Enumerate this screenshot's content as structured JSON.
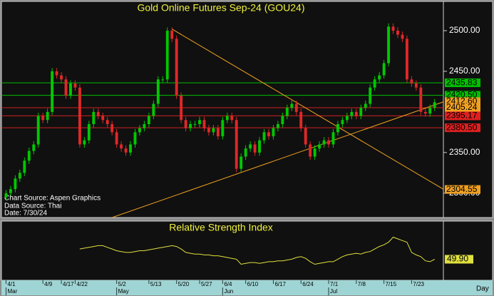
{
  "chart_data": {
    "type": "candlestick",
    "title": "Gold Online Futures Sep-24 (GOU24)",
    "annotations": [
      "Chart Source: Aspen Graphics",
      "Data Source: Thai",
      "Date: 7/30/24"
    ],
    "x_unit_label": "Day",
    "up_color": "#00c800",
    "down_color": "#e02828",
    "ylim": [
      2270,
      2536
    ],
    "yticks": [
      {
        "value": 2300,
        "label": "2300.00"
      },
      {
        "value": 2350,
        "label": "2350.00"
      },
      {
        "value": 2450,
        "label": "2450.00"
      },
      {
        "value": 2500,
        "label": "2500.00"
      }
    ],
    "xlim": [
      -1,
      94.9
    ],
    "xticks": [
      {
        "value": 0,
        "label": "4/1"
      },
      {
        "value": 8,
        "label": "4/9"
      },
      {
        "value": 12,
        "label": "4/17"
      },
      {
        "value": 15,
        "label": "4/22"
      },
      {
        "value": 24,
        "label": "5/2"
      },
      {
        "value": 31,
        "label": "5/13"
      },
      {
        "value": 37,
        "label": "5/20"
      },
      {
        "value": 42,
        "label": "5/27"
      },
      {
        "value": 47,
        "label": "6/4"
      },
      {
        "value": 52,
        "label": "6/10"
      },
      {
        "value": 58,
        "label": "6/17"
      },
      {
        "value": 64,
        "label": "6/24"
      },
      {
        "value": 70,
        "label": "7/1"
      },
      {
        "value": 76,
        "label": "7/8"
      },
      {
        "value": 82,
        "label": "7/15"
      },
      {
        "value": 88,
        "label": "7/23"
      }
    ],
    "month_ticks": [
      {
        "value": 0,
        "label": "Mar"
      },
      {
        "value": 24,
        "label": "May"
      },
      {
        "value": 47,
        "label": "Jun"
      },
      {
        "value": 70,
        "label": "Jul"
      }
    ],
    "open": [
      2295,
      2300,
      2305,
      2318,
      2325,
      2340,
      2352,
      2360,
      2395,
      2390,
      2400,
      2450,
      2445,
      2440,
      2420,
      2435,
      2430,
      2360,
      2365,
      2385,
      2400,
      2395,
      2390,
      2385,
      2375,
      2360,
      2355,
      2350,
      2360,
      2375,
      2380,
      2385,
      2395,
      2410,
      2440,
      2440,
      2500,
      2490,
      2420,
      2390,
      2380,
      2385,
      2385,
      2390,
      2380,
      2375,
      2380,
      2370,
      2390,
      2395,
      2390,
      2330,
      2345,
      2355,
      2360,
      2350,
      2365,
      2375,
      2370,
      2380,
      2385,
      2395,
      2405,
      2410,
      2400,
      2380,
      2360,
      2345,
      2355,
      2360,
      2365,
      2360,
      2375,
      2385,
      2390,
      2395,
      2400,
      2395,
      2405,
      2410,
      2430,
      2440,
      2445,
      2460,
      2505,
      2500,
      2495,
      2490,
      2440,
      2435,
      2430,
      2400,
      2398,
      2405
    ],
    "high": [
      2304,
      2309,
      2322,
      2329,
      2344,
      2356,
      2364,
      2399,
      2399,
      2404,
      2454,
      2454,
      2449,
      2444,
      2439,
      2439,
      2434,
      2369,
      2389,
      2404,
      2404,
      2399,
      2394,
      2389,
      2379,
      2364,
      2359,
      2364,
      2379,
      2384,
      2389,
      2399,
      2414,
      2444,
      2444,
      2504,
      2504,
      2494,
      2424,
      2394,
      2389,
      2389,
      2394,
      2394,
      2384,
      2384,
      2384,
      2394,
      2399,
      2399,
      2394,
      2349,
      2359,
      2364,
      2364,
      2369,
      2379,
      2379,
      2384,
      2389,
      2399,
      2409,
      2414,
      2414,
      2404,
      2384,
      2364,
      2359,
      2364,
      2369,
      2369,
      2379,
      2389,
      2394,
      2399,
      2404,
      2404,
      2409,
      2414,
      2434,
      2444,
      2449,
      2464,
      2509,
      2509,
      2504,
      2499,
      2494,
      2444,
      2439,
      2434,
      2404,
      2409,
      2416
    ],
    "low": [
      2291,
      2296,
      2301,
      2314,
      2321,
      2336,
      2348,
      2356,
      2386,
      2386,
      2396,
      2441,
      2436,
      2416,
      2416,
      2426,
      2356,
      2356,
      2361,
      2381,
      2391,
      2386,
      2381,
      2371,
      2356,
      2351,
      2346,
      2346,
      2356,
      2371,
      2376,
      2381,
      2391,
      2406,
      2436,
      2436,
      2486,
      2416,
      2386,
      2376,
      2376,
      2381,
      2381,
      2376,
      2371,
      2371,
      2366,
      2366,
      2386,
      2386,
      2326,
      2326,
      2341,
      2351,
      2346,
      2346,
      2361,
      2366,
      2366,
      2376,
      2381,
      2391,
      2401,
      2396,
      2376,
      2356,
      2341,
      2341,
      2351,
      2356,
      2356,
      2356,
      2371,
      2381,
      2386,
      2391,
      2391,
      2391,
      2401,
      2406,
      2426,
      2436,
      2441,
      2456,
      2496,
      2491,
      2486,
      2436,
      2431,
      2426,
      2396,
      2394,
      2394,
      2401
    ],
    "close": [
      2300,
      2305,
      2318,
      2325,
      2340,
      2352,
      2360,
      2395,
      2390,
      2400,
      2450,
      2445,
      2440,
      2420,
      2435,
      2430,
      2360,
      2365,
      2385,
      2400,
      2395,
      2390,
      2385,
      2375,
      2360,
      2355,
      2350,
      2360,
      2375,
      2380,
      2385,
      2395,
      2410,
      2440,
      2440,
      2500,
      2490,
      2420,
      2390,
      2380,
      2385,
      2385,
      2390,
      2380,
      2375,
      2380,
      2370,
      2390,
      2395,
      2390,
      2330,
      2345,
      2355,
      2360,
      2350,
      2365,
      2375,
      2370,
      2380,
      2385,
      2395,
      2405,
      2410,
      2400,
      2380,
      2360,
      2345,
      2355,
      2360,
      2365,
      2360,
      2375,
      2385,
      2390,
      2395,
      2400,
      2395,
      2405,
      2410,
      2430,
      2440,
      2445,
      2460,
      2505,
      2500,
      2495,
      2490,
      2440,
      2435,
      2430,
      2400,
      2398,
      2405,
      2412
    ],
    "levels": [
      {
        "value": 2435.83,
        "label": "2435.83",
        "color": "#00c000",
        "box": "#00c000"
      },
      {
        "value": 2420.5,
        "label": "2420.50",
        "color": "#00c000",
        "box": "#00c000"
      },
      {
        "value": 2412.6,
        "label": "2412.60",
        "color": null,
        "box": "#f0a020"
      },
      {
        "value": 2405.24,
        "label": "2405.24",
        "color": "#d02020",
        "box": "#f0a020"
      },
      {
        "value": 2395.17,
        "label": "2395.17",
        "color": "#d02020",
        "box": "#e02020"
      },
      {
        "value": 2380.5,
        "label": "2380.50",
        "color": "#d02020",
        "box": "#e02020"
      },
      {
        "value": 2304.55,
        "label": "2304.55",
        "color": null,
        "box": "#f0a020"
      }
    ],
    "trendlines": [
      {
        "x": [
          36,
          95
        ],
        "y": [
          2502,
          2304.55
        ],
        "color": "#f0a020"
      },
      {
        "x": [
          23,
          95
        ],
        "y": [
          2270,
          2412.6
        ],
        "color": "#f0a020"
      }
    ],
    "rsi": {
      "title": "Relative Strength Index",
      "color": "#e0e040",
      "ylim": [
        25,
        95
      ],
      "values": [
        null,
        null,
        null,
        null,
        null,
        null,
        null,
        null,
        null,
        null,
        null,
        null,
        null,
        null,
        null,
        null,
        62,
        63,
        64,
        65,
        66,
        66,
        64,
        62,
        60,
        59,
        58,
        58,
        59,
        60,
        60,
        61,
        62,
        63,
        64,
        65,
        66,
        65,
        62,
        58,
        57,
        56,
        56,
        55,
        55,
        54,
        54,
        53,
        52,
        51,
        50,
        44,
        45,
        46,
        46,
        45,
        46,
        47,
        47,
        48,
        48,
        49,
        50,
        52,
        53,
        51,
        47,
        44,
        45,
        46,
        47,
        47,
        50,
        53,
        55,
        56,
        57,
        56,
        58,
        59,
        62,
        65,
        67,
        70,
        76,
        74,
        72,
        70,
        58,
        55,
        53,
        48,
        47,
        49.9
      ],
      "last_label": "49.90"
    }
  }
}
